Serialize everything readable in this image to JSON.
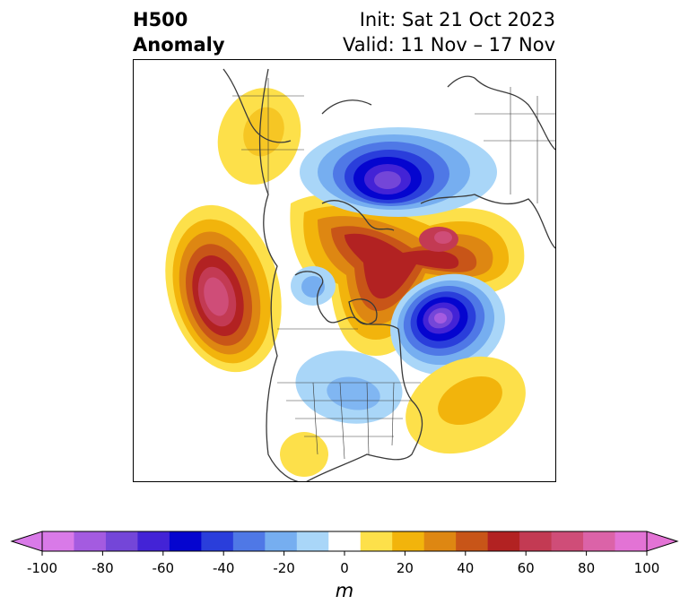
{
  "title": {
    "left_line1": "H500",
    "left_line2": "Anomaly",
    "right_line1": "Init: Sat 21 Oct 2023",
    "right_line2": "Valid: 11 Nov – 17 Nov"
  },
  "colorbar": {
    "units": "m",
    "ticks": [
      "-100",
      "-80",
      "-60",
      "-40",
      "-20",
      "0",
      "20",
      "40",
      "60",
      "80",
      "100"
    ],
    "colors": [
      "#d97ae8",
      "#a45be0",
      "#7446d8",
      "#4323d6",
      "#0505cf",
      "#2a3edb",
      "#4f78e6",
      "#76aef0",
      "#a9d6f8",
      "#ffffff",
      "#fde04a",
      "#f2b40c",
      "#de8712",
      "#c85518",
      "#b22222",
      "#c33a53",
      "#cf4d78",
      "#db63a8",
      "#e373d5"
    ],
    "extend_low": "#d97ae8",
    "extend_high": "#e373d5"
  },
  "map": {
    "anomaly_colors": {
      "neg_weak": "#a9d6f8",
      "neg_1": "#76aef0",
      "neg_2": "#4f78e6",
      "neg_3": "#2a3edb",
      "neg_4": "#0505cf",
      "neg_5": "#4323d6",
      "neg_6": "#7446d8",
      "neg_7": "#a45be0",
      "pos_1": "#fde04a",
      "pos_2": "#f2b40c",
      "pos_3": "#de8712",
      "pos_4": "#c85518",
      "pos_5": "#b22222",
      "pos_6": "#c33a53",
      "pos_7": "#cf4d78"
    },
    "coastline_color": "#3a3a3a"
  }
}
